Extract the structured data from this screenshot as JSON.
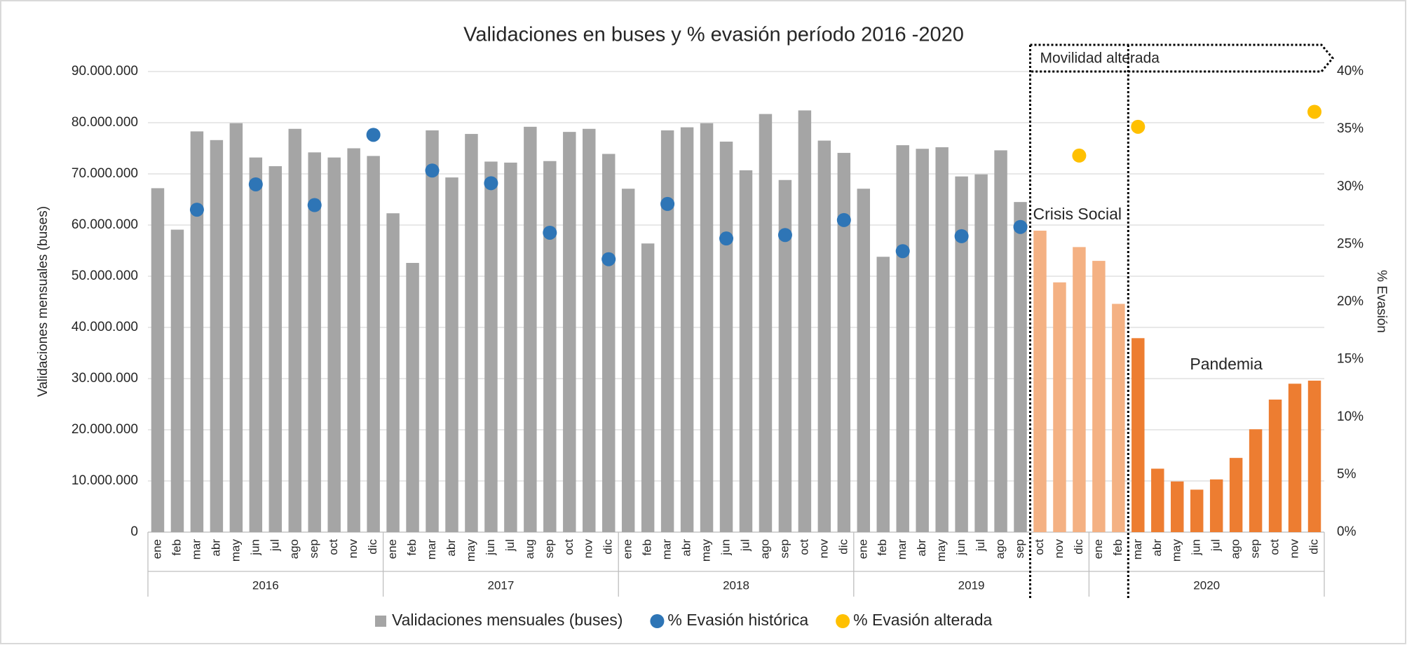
{
  "chart_data": {
    "type": "bar",
    "title": "Validaciones en buses y % evasión período 2016 -2020",
    "y_label": "Validaciones mensuales (buses)",
    "y2_label": "% Evasión",
    "annotations": [
      "Movilidad alterada",
      "Crisis Social",
      "Pandemia"
    ],
    "category_groups": [
      {
        "label": "2016",
        "categories": [
          "ene",
          "feb",
          "mar",
          "abr",
          "may",
          "jun",
          "jul",
          "ago",
          "sep",
          "oct",
          "nov",
          "dic"
        ]
      },
      {
        "label": "2017",
        "categories": [
          "ene",
          "feb",
          "mar",
          "abr",
          "may",
          "jun",
          "jul",
          "aug",
          "sep",
          "oct",
          "nov",
          "dic"
        ]
      },
      {
        "label": "2018",
        "categories": [
          "ene",
          "feb",
          "mar",
          "abr",
          "may",
          "jun",
          "jul",
          "ago",
          "sep",
          "oct",
          "nov",
          "dic"
        ]
      },
      {
        "label": "2019",
        "categories": [
          "ene",
          "feb",
          "mar",
          "abr",
          "may",
          "jun",
          "jul",
          "ago",
          "sep",
          "oct",
          "nov",
          "dic"
        ]
      },
      {
        "label": "2020",
        "categories": [
          "ene",
          "feb",
          "mar",
          "abr",
          "may",
          "jun",
          "jul",
          "ago",
          "sep",
          "oct",
          "nov",
          "dic"
        ]
      }
    ],
    "ylim": [
      0,
      90000000
    ],
    "yticks": [
      0,
      {
        "value": 10000000,
        "label": "10.000.000"
      },
      {
        "value": 20000000,
        "label": "20.000.000"
      },
      {
        "value": 30000000,
        "label": "30.000.000"
      },
      {
        "value": 40000000,
        "label": "40.000.000"
      },
      {
        "value": 50000000,
        "label": "50.000.000"
      },
      {
        "value": 60000000,
        "label": "60.000.000"
      },
      {
        "value": 70000000,
        "label": "70.000.000"
      },
      {
        "value": 80000000,
        "label": "80.000.000"
      },
      {
        "value": 90000000,
        "label": "90.000.000"
      }
    ],
    "y2lim": [
      0,
      40
    ],
    "y2ticks": [
      {
        "value": 0,
        "label": "0%"
      },
      {
        "value": 5,
        "label": "5%"
      },
      {
        "value": 10,
        "label": "10%"
      },
      {
        "value": 15,
        "label": "15%"
      },
      {
        "value": 20,
        "label": "20%"
      },
      {
        "value": 25,
        "label": "25%"
      },
      {
        "value": 30,
        "label": "30%"
      },
      {
        "value": 35,
        "label": "35%"
      },
      {
        "value": 40,
        "label": "40%"
      }
    ],
    "grid": true,
    "legend": "bottom",
    "series": [
      {
        "name": "Validaciones mensuales (buses)",
        "type": "bar",
        "color": "#a5a5a5",
        "values": [
          67200000,
          59100000,
          78300000,
          76600000,
          79900000,
          73200000,
          71500000,
          78800000,
          74200000,
          73200000,
          75000000,
          73500000,
          62300000,
          52600000,
          78500000,
          69300000,
          77800000,
          72400000,
          72200000,
          79200000,
          72500000,
          78200000,
          78800000,
          73900000,
          67100000,
          56400000,
          78500000,
          79100000,
          79900000,
          76300000,
          70700000,
          81700000,
          68800000,
          82400000,
          76500000,
          74100000,
          67100000,
          53800000,
          75600000,
          74900000,
          75200000,
          69500000,
          69900000,
          74600000,
          64500000,
          58900000,
          48800000,
          55700000,
          53000000,
          44600000,
          37900000,
          12400000,
          9900000,
          8300000,
          10300000,
          14500000,
          20100000,
          25900000,
          29000000,
          29600000
        ],
        "colors": [
          "#a5a5a5",
          "#a5a5a5",
          "#a5a5a5",
          "#a5a5a5",
          "#a5a5a5",
          "#a5a5a5",
          "#a5a5a5",
          "#a5a5a5",
          "#a5a5a5",
          "#a5a5a5",
          "#a5a5a5",
          "#a5a5a5",
          "#a5a5a5",
          "#a5a5a5",
          "#a5a5a5",
          "#a5a5a5",
          "#a5a5a5",
          "#a5a5a5",
          "#a5a5a5",
          "#a5a5a5",
          "#a5a5a5",
          "#a5a5a5",
          "#a5a5a5",
          "#a5a5a5",
          "#a5a5a5",
          "#a5a5a5",
          "#a5a5a5",
          "#a5a5a5",
          "#a5a5a5",
          "#a5a5a5",
          "#a5a5a5",
          "#a5a5a5",
          "#a5a5a5",
          "#a5a5a5",
          "#a5a5a5",
          "#a5a5a5",
          "#a5a5a5",
          "#a5a5a5",
          "#a5a5a5",
          "#a5a5a5",
          "#a5a5a5",
          "#a5a5a5",
          "#a5a5a5",
          "#a5a5a5",
          "#a5a5a5",
          "#f4b183",
          "#f4b183",
          "#f4b183",
          "#f4b183",
          "#f4b183",
          "#ed7d31",
          "#ed7d31",
          "#ed7d31",
          "#ed7d31",
          "#ed7d31",
          "#ed7d31",
          "#ed7d31",
          "#ed7d31",
          "#ed7d31",
          "#ed7d31"
        ]
      },
      {
        "name": "% Evasión histórica",
        "type": "scatter",
        "axis": "y2",
        "color": "#2e75b6",
        "values": [
          null,
          null,
          28.0,
          null,
          null,
          30.2,
          null,
          null,
          28.4,
          null,
          null,
          34.5,
          null,
          null,
          31.4,
          null,
          null,
          30.3,
          null,
          null,
          26.0,
          null,
          null,
          23.7,
          null,
          null,
          28.5,
          null,
          null,
          25.5,
          null,
          null,
          25.8,
          null,
          null,
          27.1,
          null,
          null,
          24.4,
          null,
          null,
          25.7,
          null,
          null,
          26.5,
          null,
          null,
          null,
          null,
          null,
          null,
          null,
          null,
          null,
          null,
          null,
          null,
          null,
          null,
          null
        ]
      },
      {
        "name": "% Evasión alterada",
        "type": "scatter",
        "axis": "y2",
        "color": "#ffc000",
        "values": [
          null,
          null,
          null,
          null,
          null,
          null,
          null,
          null,
          null,
          null,
          null,
          null,
          null,
          null,
          null,
          null,
          null,
          null,
          null,
          null,
          null,
          null,
          null,
          null,
          null,
          null,
          null,
          null,
          null,
          null,
          null,
          null,
          null,
          null,
          null,
          null,
          null,
          null,
          null,
          null,
          null,
          null,
          null,
          null,
          null,
          null,
          null,
          32.7,
          null,
          null,
          35.2,
          null,
          null,
          null,
          null,
          null,
          null,
          null,
          null,
          36.5
        ]
      }
    ]
  }
}
